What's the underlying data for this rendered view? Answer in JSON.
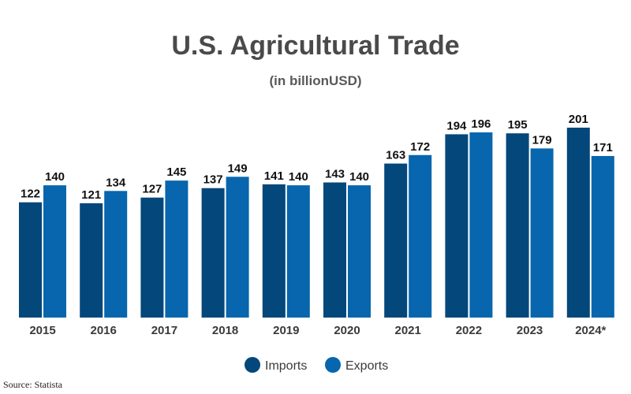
{
  "chart_data": {
    "type": "bar",
    "title": "U.S. Agricultural Trade",
    "subtitle": "(in billionUSD)",
    "categories": [
      "2015",
      "2016",
      "2017",
      "2018",
      "2019",
      "2020",
      "2021",
      "2022",
      "2023",
      "2024*"
    ],
    "series": [
      {
        "name": "Imports",
        "color": "#04477a",
        "values": [
          122,
          121,
          127,
          137,
          141,
          143,
          163,
          194,
          195,
          201
        ]
      },
      {
        "name": "Exports",
        "color": "#0766ad",
        "values": [
          140,
          134,
          145,
          149,
          140,
          140,
          172,
          196,
          179,
          171
        ]
      }
    ],
    "ylim": [
      0,
      201
    ],
    "grid": false,
    "data_labels": true,
    "legend_position": "bottom-center",
    "xlabel": "",
    "ylabel": ""
  },
  "source": "Source: Statista"
}
